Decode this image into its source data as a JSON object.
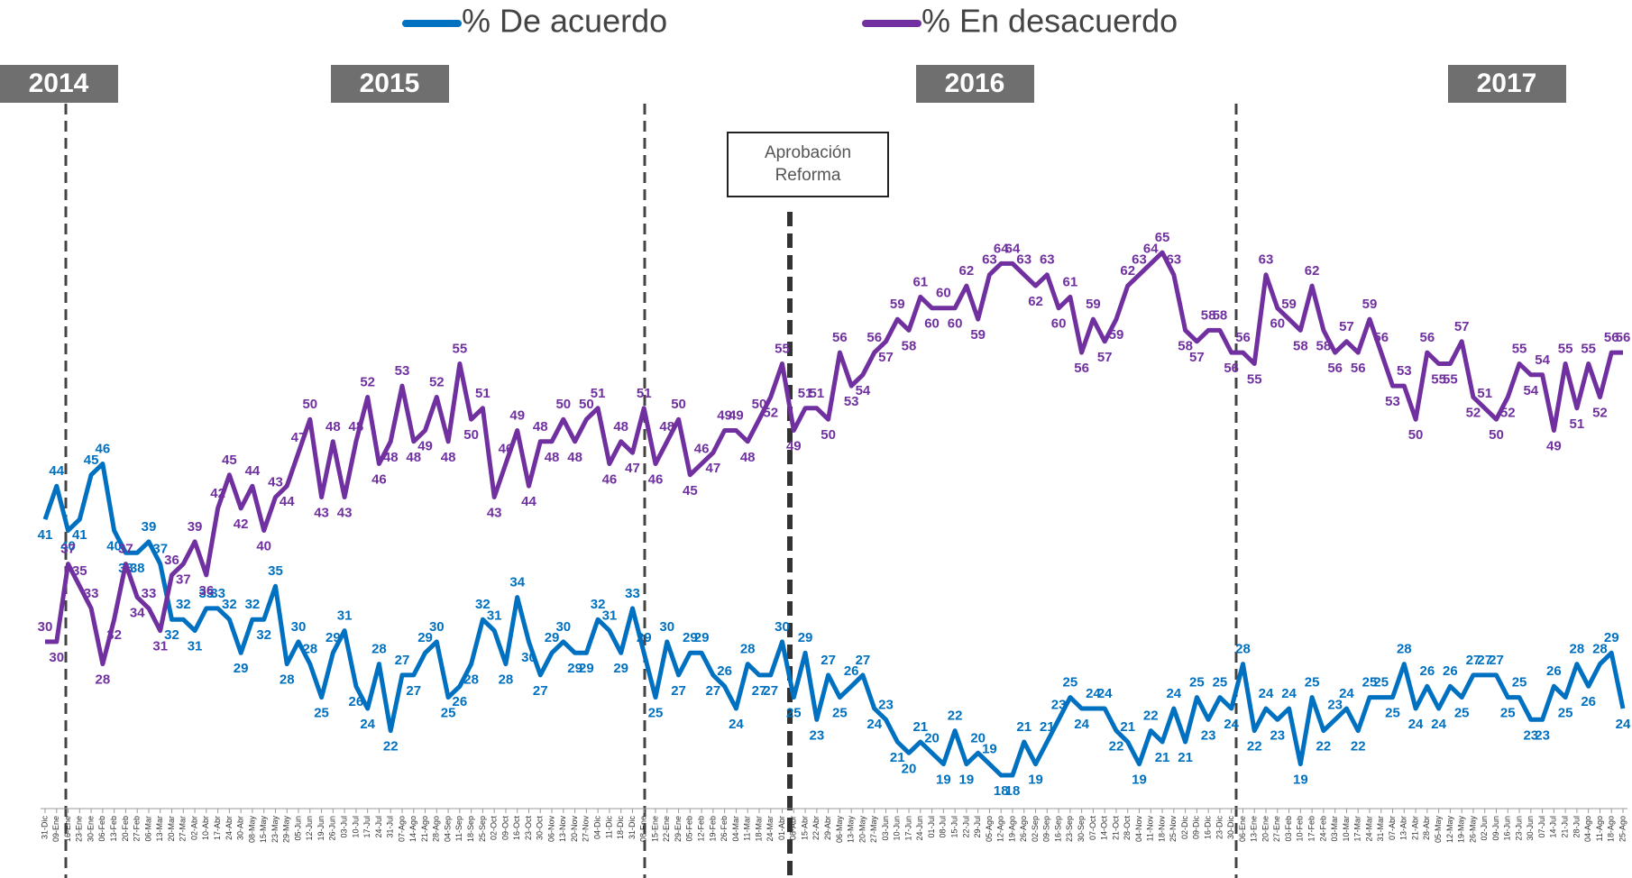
{
  "chart_data": {
    "type": "line",
    "period_labels": [
      "2014",
      "2015",
      "2016",
      "2017"
    ],
    "annotation": "Aprobación Reforma",
    "categories": [
      "31-Dic",
      "09-Ene",
      "16-Ene",
      "23-Ene",
      "30-Ene",
      "06-Feb",
      "13-Feb",
      "20-Feb",
      "27-Feb",
      "06-Mar",
      "13-Mar",
      "20-Mar",
      "27-Mar",
      "02-Abr",
      "10-Abr",
      "17-Abr",
      "24-Abr",
      "30-Abr",
      "08-May",
      "15-May",
      "23-May",
      "29-May",
      "05-Jun",
      "12-Jun",
      "19-Jun",
      "26-Jun",
      "03-Jul",
      "10-Jul",
      "17-Jul",
      "24-Jul",
      "31-Jul",
      "07-Ago",
      "14-Ago",
      "21-Ago",
      "28-Ago",
      "04-Sep",
      "11-Sep",
      "18-Sep",
      "25-Sep",
      "02-Oct",
      "09-Oct",
      "16-Oct",
      "23-Oct",
      "30-Oct",
      "06-Nov",
      "13-Nov",
      "20-Nov",
      "27-Nov",
      "04-Dic",
      "11-Dic",
      "18-Dic",
      "31-Dic",
      "08-Ene",
      "15-Ene",
      "22-Ene",
      "29-Ene",
      "05-Feb",
      "12-Feb",
      "19-Feb",
      "26-Feb",
      "04-Mar",
      "11-Mar",
      "18-Mar",
      "24-Mar",
      "01-Abr",
      "08-Abr",
      "15-Abr",
      "22-Abr",
      "29-Abr",
      "06-May",
      "13-May",
      "20-May",
      "27-May",
      "03-Jun",
      "10-Jun",
      "17-Jun",
      "24-Jun",
      "01-Jul",
      "08-Jul",
      "15-Jul",
      "22-Jul",
      "29-Jul",
      "05-Ago",
      "12-Ago",
      "19-Ago",
      "26-Ago",
      "02-Sep",
      "09-Sep",
      "16-Sep",
      "23-Sep",
      "30-Sep",
      "07-Oct",
      "14-Oct",
      "21-Oct",
      "28-Oct",
      "04-Nov",
      "11-Nov",
      "18-Nov",
      "25-Nov",
      "02-Dic",
      "09-Dic",
      "16-Dic",
      "23-Dic",
      "30-Dic",
      "06-Ene",
      "13-Ene",
      "20-Ene",
      "27-Ene",
      "03-Feb",
      "10-Feb",
      "17-Feb",
      "24-Feb",
      "03-Mar",
      "10-Mar",
      "17-Mar",
      "24-Mar",
      "31-Mar",
      "07-Abr",
      "13-Abr",
      "21-Abr",
      "28-Abr",
      "05-May",
      "12-May",
      "19-May",
      "26-May",
      "02-Jun",
      "09-Jun",
      "16-Jun",
      "23-Jun",
      "30-Jun",
      "07-Jul",
      "14-Jul",
      "21-Jul",
      "28-Jul",
      "04-Ago",
      "11-Ago",
      "18-Ago",
      "25-Ago"
    ],
    "series": [
      {
        "name": "% De acuerdo",
        "color": "#0070c0",
        "values": [
          41,
          44,
          40,
          41,
          45,
          46,
          40,
          38,
          38,
          39,
          37,
          32,
          32,
          31,
          33,
          33,
          32,
          29,
          32,
          32,
          35,
          28,
          30,
          28,
          25,
          29,
          31,
          26,
          24,
          28,
          22,
          27,
          27,
          29,
          30,
          25,
          26,
          28,
          32,
          31,
          28,
          34,
          30,
          27,
          29,
          30,
          29,
          29,
          32,
          31,
          29,
          33,
          29,
          25,
          30,
          27,
          29,
          29,
          27,
          26,
          24,
          28,
          27,
          27,
          30,
          25,
          29,
          23,
          27,
          25,
          26,
          27,
          24,
          23,
          21,
          20,
          21,
          20,
          19,
          22,
          19,
          20,
          19,
          18,
          18,
          21,
          19,
          21,
          23,
          25,
          24,
          24,
          24,
          22,
          21,
          19,
          22,
          21,
          24,
          21,
          25,
          23,
          25,
          24,
          28,
          22,
          24,
          23,
          24,
          19,
          25,
          22,
          23,
          24,
          22,
          25,
          25,
          25,
          28,
          24,
          26,
          24,
          26,
          25,
          27,
          27,
          27,
          25,
          25,
          23,
          23,
          26,
          25,
          28,
          26,
          28,
          29,
          24
        ]
      },
      {
        "name": "% En desacuerdo",
        "color": "#7030a0",
        "values": [
          30,
          30,
          37,
          35,
          33,
          28,
          32,
          37,
          34,
          33,
          31,
          36,
          37,
          39,
          36,
          42,
          45,
          42,
          44,
          40,
          43,
          44,
          47,
          50,
          43,
          48,
          43,
          48,
          52,
          46,
          48,
          53,
          48,
          49,
          52,
          48,
          55,
          50,
          51,
          43,
          46,
          49,
          44,
          48,
          48,
          50,
          48,
          50,
          51,
          46,
          48,
          47,
          51,
          46,
          48,
          50,
          45,
          46,
          47,
          49,
          49,
          48,
          50,
          52,
          55,
          49,
          51,
          51,
          50,
          56,
          53,
          54,
          56,
          57,
          59,
          58,
          61,
          60,
          60,
          60,
          62,
          59,
          63,
          64,
          64,
          63,
          62,
          63,
          60,
          61,
          56,
          59,
          57,
          59,
          62,
          63,
          64,
          65,
          63,
          58,
          57,
          58,
          58,
          56,
          56,
          55,
          63,
          60,
          59,
          58,
          62,
          58,
          56,
          57,
          56,
          59,
          56,
          53,
          53,
          50,
          56,
          55,
          55,
          57,
          52,
          51,
          50,
          52,
          55,
          54,
          54,
          49,
          55,
          51,
          55,
          52,
          56,
          56
        ]
      }
    ],
    "ylim": [
      15,
      80
    ]
  }
}
